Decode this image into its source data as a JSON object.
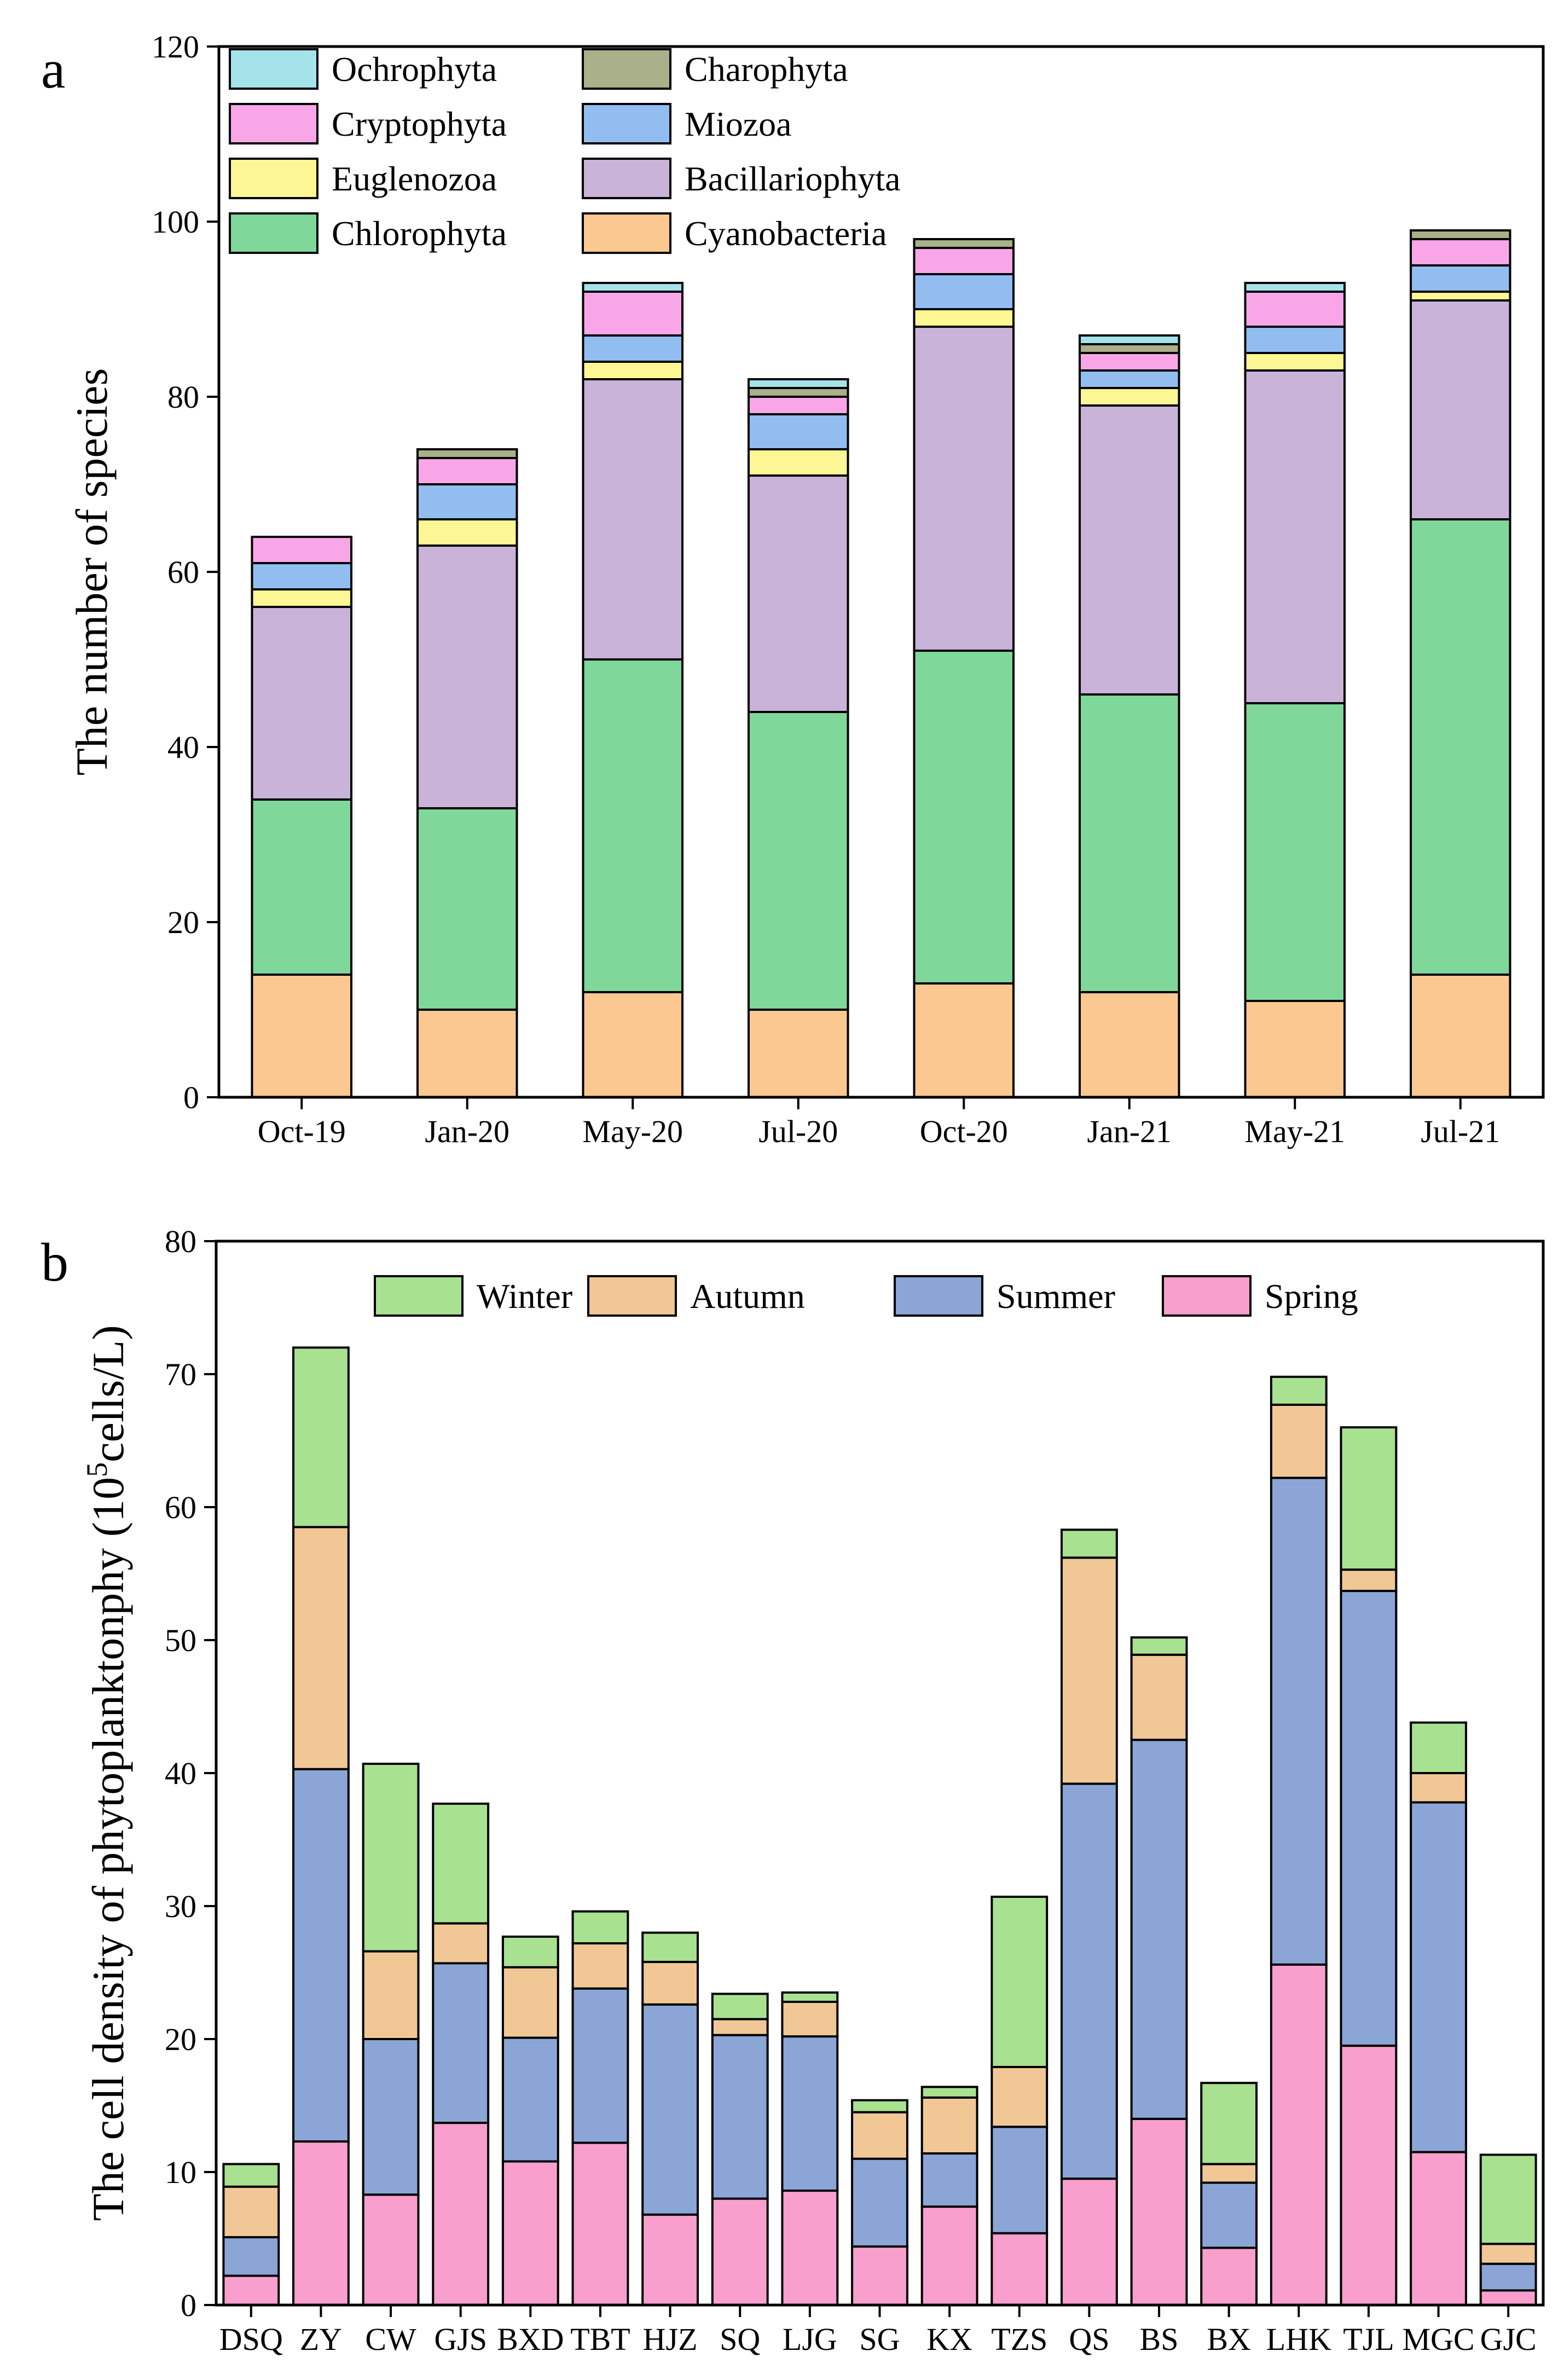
{
  "chart_data": [
    {
      "panel": "a",
      "type": "bar",
      "stacked": true,
      "ylabel": "The number of species",
      "xlabel": "",
      "ylim": [
        0,
        120
      ],
      "yticks": [
        0,
        20,
        40,
        60,
        80,
        100,
        120
      ],
      "categories": [
        "Oct-19",
        "Jan-20",
        "May-20",
        "Jul-20",
        "Oct-20",
        "Jan-21",
        "May-21",
        "Jul-21"
      ],
      "series": [
        {
          "name": "Cyanobacteria",
          "color": "#FCC891",
          "values": [
            14,
            10,
            12,
            10,
            13,
            12,
            11,
            14
          ]
        },
        {
          "name": "Chlorophyta",
          "color": "#7FD79A",
          "values": [
            20,
            23,
            38,
            34,
            38,
            34,
            34,
            52
          ]
        },
        {
          "name": "Bacillariophyta",
          "color": "#C9B3D9",
          "values": [
            22,
            30,
            32,
            27,
            37,
            33,
            38,
            25
          ]
        },
        {
          "name": "Euglenozoa",
          "color": "#FCF794",
          "values": [
            2,
            3,
            2,
            3,
            2,
            2,
            2,
            1
          ]
        },
        {
          "name": "Miozoa",
          "color": "#92BDF0",
          "values": [
            3,
            4,
            3,
            4,
            4,
            2,
            3,
            3
          ]
        },
        {
          "name": "Cryptophyta",
          "color": "#F9A6E9",
          "values": [
            3,
            3,
            5,
            2,
            3,
            2,
            4,
            3
          ]
        },
        {
          "name": "Charophyta",
          "color": "#A9B08A",
          "values": [
            0,
            1,
            0,
            1,
            1,
            1,
            0,
            1
          ]
        },
        {
          "name": "Ochrophyta",
          "color": "#A5E3EB",
          "values": [
            0,
            0,
            1,
            1,
            0,
            1,
            1,
            0
          ]
        }
      ],
      "legend": {
        "placement": "top-left",
        "entries": [
          {
            "name": "Ochrophyta",
            "color": "#A5E3EB"
          },
          {
            "name": "Charophyta",
            "color": "#A9B08A"
          },
          {
            "name": "Cryptophyta",
            "color": "#F9A6E9"
          },
          {
            "name": "Miozoa",
            "color": "#92BDF0"
          },
          {
            "name": "Euglenozoa",
            "color": "#FCF794"
          },
          {
            "name": "Bacillariophyta",
            "color": "#C9B3D9"
          },
          {
            "name": "Chlorophyta",
            "color": "#7FD79A"
          },
          {
            "name": "Cyanobacteria",
            "color": "#FCC891"
          }
        ]
      }
    },
    {
      "panel": "b",
      "type": "bar",
      "stacked": true,
      "ylabel_main": "The cell density of phytoplanktonphy (10",
      "ylabel_sup": "5",
      "ylabel_end": "cells/L)",
      "xlabel": "",
      "ylim": [
        0,
        80
      ],
      "yticks": [
        0,
        10,
        20,
        30,
        40,
        50,
        60,
        70,
        80
      ],
      "categories": [
        "DSQ",
        "ZY",
        "CW",
        "GJS",
        "BXD",
        "TBT",
        "HJZ",
        "SQ",
        "LJG",
        "SG",
        "KX",
        "TZS",
        "QS",
        "BS",
        "BX",
        "LHK",
        "TJL",
        "MGC",
        "GJC"
      ],
      "series": [
        {
          "name": "Spring",
          "color": "#F99FCD",
          "values": [
            2.2,
            12.3,
            8.3,
            13.7,
            10.8,
            12.2,
            6.8,
            8.0,
            8.6,
            4.4,
            7.4,
            5.4,
            9.5,
            14.0,
            4.3,
            25.6,
            19.5,
            11.5,
            1.1
          ]
        },
        {
          "name": "Summer",
          "color": "#8BA6D6",
          "values": [
            2.9,
            28.0,
            11.7,
            12.0,
            9.3,
            11.6,
            15.8,
            12.3,
            11.6,
            6.6,
            4.0,
            8.0,
            29.7,
            28.5,
            4.9,
            36.6,
            34.2,
            26.3,
            2.0
          ]
        },
        {
          "name": "Autumn",
          "color": "#F2C796",
          "values": [
            3.8,
            18.2,
            6.6,
            3.0,
            5.3,
            3.4,
            3.2,
            1.2,
            2.6,
            3.5,
            4.2,
            4.5,
            17.0,
            6.4,
            1.4,
            5.5,
            1.6,
            2.2,
            1.5
          ]
        },
        {
          "name": "Winter",
          "color": "#A8E190",
          "values": [
            1.7,
            13.5,
            14.1,
            9.0,
            2.3,
            2.4,
            2.2,
            1.9,
            0.7,
            0.9,
            0.8,
            12.8,
            2.1,
            1.3,
            6.1,
            2.1,
            10.7,
            3.8,
            6.7
          ]
        }
      ],
      "legend": {
        "placement": "top",
        "entries": [
          {
            "name": "Winter",
            "color": "#A8E190"
          },
          {
            "name": "Autumn",
            "color": "#F2C796"
          },
          {
            "name": "Summer",
            "color": "#8BA6D6"
          },
          {
            "name": "Spring",
            "color": "#F99FCD"
          }
        ]
      }
    }
  ]
}
